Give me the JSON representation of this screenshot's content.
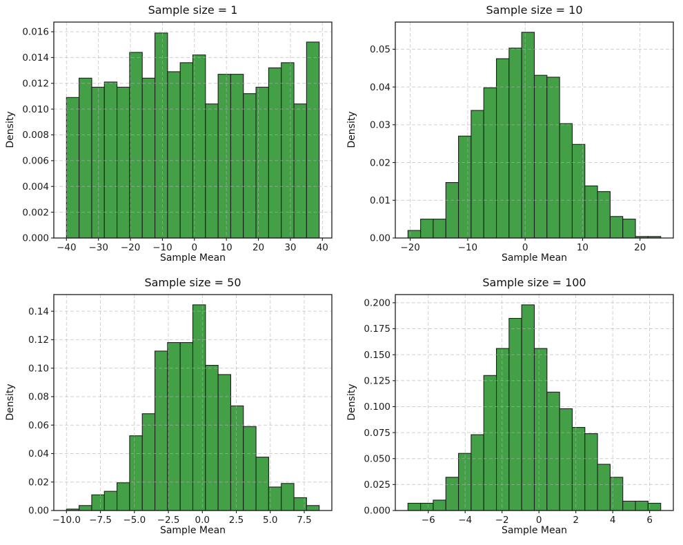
{
  "figure": {
    "background": "#ffffff",
    "bar_fill": "#43a047",
    "bar_edge": "#1c1c1c",
    "grid_color": "#b0b0b0",
    "axis_color": "#1a1a1a",
    "text_color": "#111111"
  },
  "chart_data": [
    {
      "type": "bar",
      "title": "Sample size = 1",
      "xlabel": "Sample Mean",
      "ylabel": "Density",
      "grid": true,
      "legend": null,
      "bin_start": -40.0,
      "bin_width": 3.95,
      "values": [
        0.0109,
        0.0124,
        0.0117,
        0.0121,
        0.0117,
        0.0144,
        0.0124,
        0.0159,
        0.0129,
        0.0136,
        0.0142,
        0.0104,
        0.0127,
        0.0127,
        0.0112,
        0.0117,
        0.0132,
        0.0136,
        0.0104,
        0.0152
      ],
      "xlim": [
        -43.95,
        42.95
      ],
      "ylim": [
        0,
        0.01675
      ],
      "xticks": [
        {
          "v": -40,
          "t": "−40"
        },
        {
          "v": -30,
          "t": "−30"
        },
        {
          "v": -20,
          "t": "−20"
        },
        {
          "v": -10,
          "t": "−10"
        },
        {
          "v": 0,
          "t": "0"
        },
        {
          "v": 10,
          "t": "10"
        },
        {
          "v": 20,
          "t": "20"
        },
        {
          "v": 30,
          "t": "30"
        },
        {
          "v": 40,
          "t": "40"
        }
      ],
      "yticks": [
        {
          "v": 0,
          "t": "0.000"
        },
        {
          "v": 0.002,
          "t": "0.002"
        },
        {
          "v": 0.004,
          "t": "0.004"
        },
        {
          "v": 0.006,
          "t": "0.006"
        },
        {
          "v": 0.008,
          "t": "0.008"
        },
        {
          "v": 0.01,
          "t": "0.010"
        },
        {
          "v": 0.012,
          "t": "0.012"
        },
        {
          "v": 0.014,
          "t": "0.014"
        },
        {
          "v": 0.016,
          "t": "0.016"
        }
      ]
    },
    {
      "type": "bar",
      "title": "Sample size = 10",
      "xlabel": "Sample Mean",
      "ylabel": "Density",
      "grid": true,
      "legend": null,
      "bin_start": -20.4,
      "bin_width": 2.2,
      "values": [
        0.002,
        0.005,
        0.005,
        0.0147,
        0.027,
        0.0338,
        0.0398,
        0.0475,
        0.0503,
        0.0545,
        0.0431,
        0.0426,
        0.0303,
        0.0248,
        0.0138,
        0.0123,
        0.0057,
        0.005,
        0.0004,
        0.0004
      ],
      "xlim": [
        -22.6,
        25.8
      ],
      "ylim": [
        0,
        0.0572
      ],
      "xticks": [
        {
          "v": -20,
          "t": "−20"
        },
        {
          "v": -10,
          "t": "−10"
        },
        {
          "v": 0,
          "t": "0"
        },
        {
          "v": 10,
          "t": "10"
        },
        {
          "v": 20,
          "t": "20"
        }
      ],
      "yticks": [
        {
          "v": 0,
          "t": "0.00"
        },
        {
          "v": 0.01,
          "t": "0.01"
        },
        {
          "v": 0.02,
          "t": "0.02"
        },
        {
          "v": 0.03,
          "t": "0.03"
        },
        {
          "v": 0.04,
          "t": "0.04"
        },
        {
          "v": 0.05,
          "t": "0.05"
        }
      ]
    },
    {
      "type": "bar",
      "title": "Sample size = 50",
      "xlabel": "Sample Mean",
      "ylabel": "Density",
      "grid": true,
      "legend": null,
      "bin_start": -10.0,
      "bin_width": 0.93,
      "values": [
        0.001,
        0.0035,
        0.011,
        0.0135,
        0.0195,
        0.0525,
        0.068,
        0.112,
        0.118,
        0.118,
        0.1445,
        0.102,
        0.0955,
        0.0735,
        0.059,
        0.0375,
        0.0165,
        0.019,
        0.009,
        0.0035
      ],
      "xlim": [
        -10.93,
        9.53
      ],
      "ylim": [
        0,
        0.1517
      ],
      "xticks": [
        {
          "v": -10,
          "t": "−10.0"
        },
        {
          "v": -7.5,
          "t": "−7.5"
        },
        {
          "v": -5,
          "t": "−5.0"
        },
        {
          "v": -2.5,
          "t": "−2.5"
        },
        {
          "v": 0,
          "t": "0.0"
        },
        {
          "v": 2.5,
          "t": "2.5"
        },
        {
          "v": 5,
          "t": "5.0"
        },
        {
          "v": 7.5,
          "t": "7.5"
        }
      ],
      "yticks": [
        {
          "v": 0,
          "t": "0.00"
        },
        {
          "v": 0.02,
          "t": "0.02"
        },
        {
          "v": 0.04,
          "t": "0.04"
        },
        {
          "v": 0.06,
          "t": "0.06"
        },
        {
          "v": 0.08,
          "t": "0.08"
        },
        {
          "v": 0.1,
          "t": "0.10"
        },
        {
          "v": 0.12,
          "t": "0.12"
        },
        {
          "v": 0.14,
          "t": "0.14"
        }
      ]
    },
    {
      "type": "bar",
      "title": "Sample size = 100",
      "xlabel": "Sample Mean",
      "ylabel": "Density",
      "grid": true,
      "legend": null,
      "bin_start": -7.1,
      "bin_width": 0.685,
      "values": [
        0.007,
        0.007,
        0.01,
        0.032,
        0.055,
        0.073,
        0.13,
        0.156,
        0.185,
        0.198,
        0.156,
        0.114,
        0.098,
        0.08,
        0.074,
        0.0445,
        0.032,
        0.009,
        0.009,
        0.007
      ],
      "xlim": [
        -7.785,
        7.285
      ],
      "ylim": [
        0,
        0.2079
      ],
      "xticks": [
        {
          "v": -6,
          "t": "−6"
        },
        {
          "v": -4,
          "t": "−4"
        },
        {
          "v": -2,
          "t": "−2"
        },
        {
          "v": 0,
          "t": "0"
        },
        {
          "v": 2,
          "t": "2"
        },
        {
          "v": 4,
          "t": "4"
        },
        {
          "v": 6,
          "t": "6"
        }
      ],
      "yticks": [
        {
          "v": 0,
          "t": "0.000"
        },
        {
          "v": 0.025,
          "t": "0.025"
        },
        {
          "v": 0.05,
          "t": "0.050"
        },
        {
          "v": 0.075,
          "t": "0.075"
        },
        {
          "v": 0.1,
          "t": "0.100"
        },
        {
          "v": 0.125,
          "t": "0.125"
        },
        {
          "v": 0.15,
          "t": "0.150"
        },
        {
          "v": 0.175,
          "t": "0.175"
        },
        {
          "v": 0.2,
          "t": "0.200"
        }
      ]
    }
  ]
}
